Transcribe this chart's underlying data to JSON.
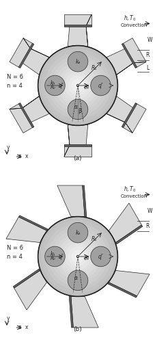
{
  "title_a": "(a)",
  "title_b": "(b)",
  "fig_label": "h, T₀",
  "convection_label": "Convection",
  "N_label": "N = 6",
  "n_label": "n = 4",
  "labels": {
    "kf": "kₑ",
    "kh": "kₕ",
    "R0": "R₀",
    "R1": "R₁",
    "q_left": "q″",
    "q_right": "q″",
    "e4": "e₄",
    "alpha": "α",
    "beta": "β",
    "W": "W",
    "R": "R",
    "L": "L"
  },
  "colors": {
    "background": "#ffffff",
    "disk_outer": "#d0d0d0",
    "disk_inner": "#e8e8e8",
    "disk_center_light": "#f0f0f0",
    "ihs_circle": "#a0a0a0",
    "fin_light": "#d8d8d8",
    "fin_dark": "#606060",
    "fin_mid": "#b8b8b8",
    "black": "#222222",
    "dark_gray": "#444444",
    "medium_gray": "#888888",
    "text_color": "#222222",
    "arrow_color": "#333333"
  }
}
